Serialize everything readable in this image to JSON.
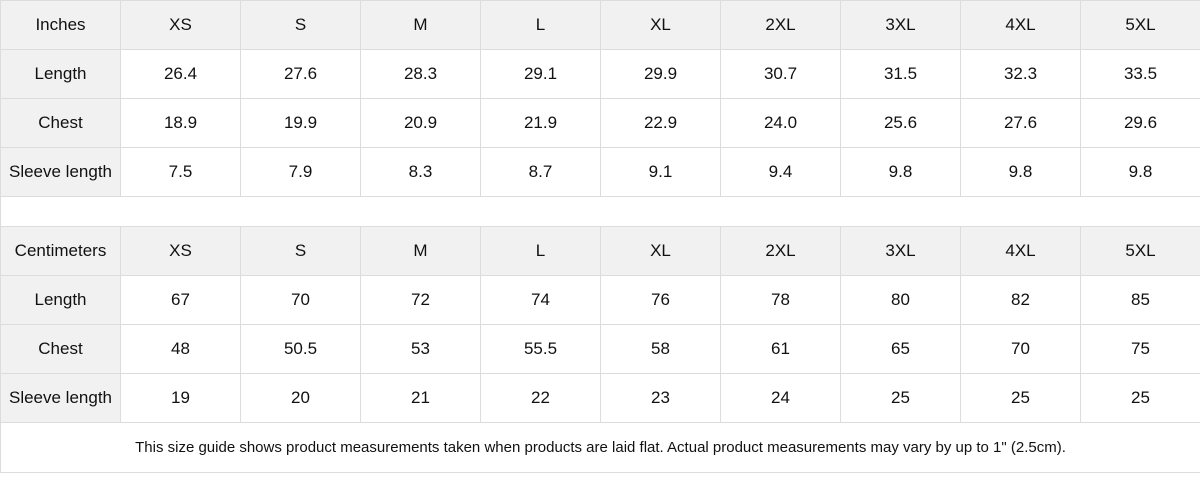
{
  "inches": {
    "header": [
      "Inches",
      "XS",
      "S",
      "M",
      "L",
      "XL",
      "2XL",
      "3XL",
      "4XL",
      "5XL"
    ],
    "rows": [
      [
        "Length",
        "26.4",
        "27.6",
        "28.3",
        "29.1",
        "29.9",
        "30.7",
        "31.5",
        "32.3",
        "33.5"
      ],
      [
        "Chest",
        "18.9",
        "19.9",
        "20.9",
        "21.9",
        "22.9",
        "24.0",
        "25.6",
        "27.6",
        "29.6"
      ],
      [
        "Sleeve length",
        "7.5",
        "7.9",
        "8.3",
        "8.7",
        "9.1",
        "9.4",
        "9.8",
        "9.8",
        "9.8"
      ]
    ]
  },
  "centimeters": {
    "header": [
      "Centimeters",
      "XS",
      "S",
      "M",
      "L",
      "XL",
      "2XL",
      "3XL",
      "4XL",
      "5XL"
    ],
    "rows": [
      [
        "Length",
        "67",
        "70",
        "72",
        "74",
        "76",
        "78",
        "80",
        "82",
        "85"
      ],
      [
        "Chest",
        "48",
        "50.5",
        "53",
        "55.5",
        "58",
        "61",
        "65",
        "70",
        "75"
      ],
      [
        "Sleeve length",
        "19",
        "20",
        "21",
        "22",
        "23",
        "24",
        "25",
        "25",
        "25"
      ]
    ]
  },
  "footnote": "This size guide shows product measurements taken when products are laid flat.  Actual product measurements may vary by up to 1\" (2.5cm).",
  "colors": {
    "header_bg": "#f1f1f1",
    "border": "#dcdcdc"
  }
}
